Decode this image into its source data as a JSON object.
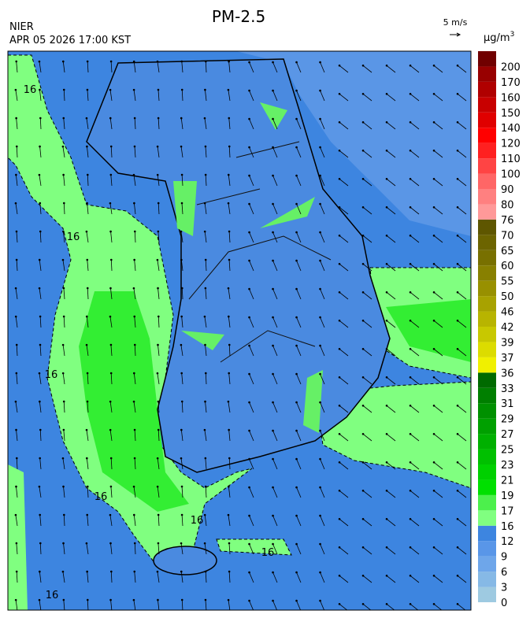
{
  "title": "PM-2.5",
  "agency": "NIER",
  "timestamp": "APR 05 2026 17:00 KST",
  "wind_scale": "5 m/s",
  "unit": {
    "base": "μg/m",
    "sup": "3"
  },
  "colorbar": {
    "labels": [
      0,
      3,
      6,
      9,
      12,
      16,
      17,
      19,
      21,
      23,
      25,
      27,
      29,
      31,
      33,
      36,
      37,
      39,
      42,
      46,
      50,
      55,
      60,
      65,
      70,
      76,
      80,
      90,
      100,
      110,
      120,
      140,
      150,
      160,
      170,
      200
    ],
    "colors": [
      "#9ecae1",
      "#86b9e6",
      "#6ea6ea",
      "#5996e8",
      "#3d85e0",
      "#80ff80",
      "#4cf04c",
      "#00e000",
      "#00d000",
      "#00c000",
      "#00b000",
      "#00a000",
      "#009000",
      "#007f00",
      "#006a00",
      "#f0f000",
      "#dcdc00",
      "#c8c800",
      "#b8b400",
      "#a8a200",
      "#989000",
      "#888000",
      "#787000",
      "#6c6400",
      "#5e5600",
      "#ff9999",
      "#ff8080",
      "#ff6666",
      "#ff4444",
      "#ff2020",
      "#ff0000",
      "#e00000",
      "#c80000",
      "#b00000",
      "#980000",
      "#700000"
    ]
  },
  "contour_labels": [
    "16",
    "16",
    "16",
    "16",
    "16",
    "16",
    "16"
  ]
}
